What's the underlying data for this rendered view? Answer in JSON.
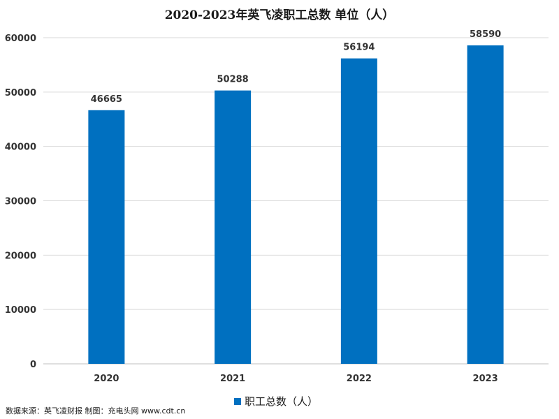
{
  "chart_data": {
    "type": "bar",
    "title": "2020-2023年英飞凌职工总数  单位（人）",
    "categories": [
      "2020",
      "2021",
      "2022",
      "2023"
    ],
    "series": [
      {
        "name": "职工总数（人）",
        "values": [
          46665,
          50288,
          56194,
          58590
        ],
        "color": "#0070c0"
      }
    ],
    "yticks": [
      "0",
      "10000",
      "20000",
      "30000",
      "40000",
      "50000",
      "60000"
    ],
    "ylim": [
      0,
      60000
    ],
    "grid": true,
    "legend_position": "bottom"
  },
  "source_note": "数据来源：英飞凌财报 制图：充电头网 www.cdt.cn"
}
